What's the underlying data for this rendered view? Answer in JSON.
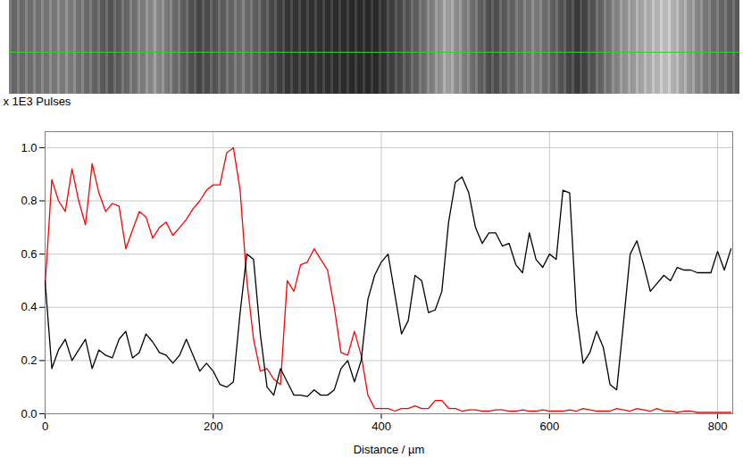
{
  "chart_data": {
    "type": "line",
    "x_label": "Distance / µm",
    "y_label": "x 1E3 Pulses",
    "xlim": [
      0,
      818
    ],
    "xticks": [
      0,
      200,
      400,
      600,
      800
    ],
    "ylim": [
      0,
      1.06
    ],
    "yticks": [
      {
        "value": 0,
        "label": "0.0"
      },
      {
        "value": 0.2,
        "label": "0.2"
      },
      {
        "value": 0.4,
        "label": "0.4"
      },
      {
        "value": 0.6,
        "label": "0.6"
      },
      {
        "value": 0.8,
        "label": "0.8"
      },
      {
        "value": 1,
        "label": "1.0"
      }
    ],
    "grid": true,
    "x": [
      0,
      8,
      16,
      24,
      32,
      40,
      48,
      56,
      64,
      72,
      80,
      88,
      96,
      104,
      112,
      120,
      128,
      136,
      144,
      152,
      160,
      168,
      176,
      184,
      192,
      200,
      208,
      216,
      224,
      232,
      240,
      248,
      256,
      264,
      272,
      280,
      288,
      296,
      304,
      312,
      320,
      328,
      336,
      344,
      352,
      360,
      368,
      376,
      384,
      392,
      400,
      408,
      416,
      424,
      432,
      440,
      448,
      456,
      464,
      472,
      480,
      488,
      496,
      504,
      512,
      520,
      528,
      536,
      544,
      552,
      560,
      568,
      576,
      584,
      592,
      600,
      608,
      616,
      624,
      632,
      640,
      648,
      656,
      664,
      672,
      680,
      688,
      696,
      704,
      712,
      720,
      728,
      736,
      744,
      752,
      760,
      768,
      776,
      784,
      792,
      800,
      808,
      816
    ],
    "series": [
      {
        "color": "#ff0000",
        "values": [
          0.48,
          0.88,
          0.8,
          0.76,
          0.92,
          0.8,
          0.71,
          0.94,
          0.83,
          0.76,
          0.79,
          0.78,
          0.62,
          0.69,
          0.76,
          0.74,
          0.66,
          0.7,
          0.72,
          0.67,
          0.7,
          0.73,
          0.77,
          0.8,
          0.84,
          0.86,
          0.86,
          0.98,
          1.0,
          0.84,
          0.5,
          0.28,
          0.16,
          0.17,
          0.13,
          0.11,
          0.5,
          0.46,
          0.56,
          0.57,
          0.62,
          0.58,
          0.54,
          0.4,
          0.23,
          0.22,
          0.31,
          0.22,
          0.07,
          0.02,
          0.02,
          0.02,
          0.01,
          0.02,
          0.02,
          0.03,
          0.02,
          0.02,
          0.05,
          0.05,
          0.02,
          0.02,
          0.01,
          0.015,
          0.015,
          0.01,
          0.01,
          0.015,
          0.015,
          0.01,
          0.01,
          0.015,
          0.01,
          0.01,
          0.015,
          0.01,
          0.01,
          0.01,
          0.015,
          0.01,
          0.02,
          0.015,
          0.01,
          0.01,
          0.01,
          0.02,
          0.015,
          0.01,
          0.02,
          0.015,
          0.01,
          0.02,
          0.01,
          0.01,
          0.005,
          0.01,
          0.01,
          0.005,
          0.005,
          0.005,
          0.005,
          0.005,
          0.005
        ]
      },
      {
        "color": "#000000",
        "values": [
          0.5,
          0.17,
          0.24,
          0.28,
          0.2,
          0.24,
          0.28,
          0.17,
          0.24,
          0.22,
          0.21,
          0.28,
          0.31,
          0.21,
          0.23,
          0.3,
          0.27,
          0.23,
          0.22,
          0.19,
          0.22,
          0.28,
          0.22,
          0.16,
          0.19,
          0.16,
          0.11,
          0.1,
          0.12,
          0.38,
          0.6,
          0.58,
          0.3,
          0.1,
          0.07,
          0.17,
          0.12,
          0.07,
          0.07,
          0.065,
          0.09,
          0.07,
          0.07,
          0.09,
          0.17,
          0.2,
          0.12,
          0.2,
          0.43,
          0.52,
          0.57,
          0.6,
          0.45,
          0.3,
          0.35,
          0.52,
          0.5,
          0.38,
          0.39,
          0.46,
          0.72,
          0.87,
          0.89,
          0.83,
          0.7,
          0.64,
          0.68,
          0.68,
          0.63,
          0.64,
          0.56,
          0.53,
          0.68,
          0.58,
          0.55,
          0.6,
          0.58,
          0.84,
          0.83,
          0.38,
          0.19,
          0.23,
          0.31,
          0.25,
          0.11,
          0.09,
          0.34,
          0.6,
          0.65,
          0.56,
          0.46,
          0.49,
          0.52,
          0.5,
          0.55,
          0.54,
          0.54,
          0.53,
          0.53,
          0.53,
          0.61,
          0.54,
          0.62
        ]
      }
    ]
  }
}
